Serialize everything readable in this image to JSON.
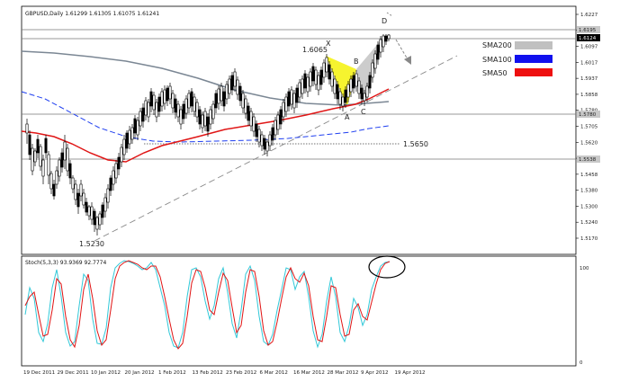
{
  "header": {
    "main_title": "GBPUSD,Daily  1.61299 1.61305 1.61075 1.61241",
    "stoch_title": "Stoch(5,3,3) 93.9369 92.7774"
  },
  "legend": [
    {
      "label": "SMA200",
      "color": "#c0c0c0"
    },
    {
      "label": "SMA100",
      "color": "#1010ee"
    },
    {
      "label": "SMA50",
      "color": "#ee1010"
    }
  ],
  "price_axis": [
    "1.6227",
    "1.6124",
    "1.6097",
    "1.6017",
    "1.5937",
    "1.5858",
    "1.5780",
    "1.5705",
    "1.5620",
    "1.5539",
    "1.5458",
    "1.5380",
    "1.5300",
    "1.5240",
    "1.5170"
  ],
  "price_tags": {
    "current": "1.6124",
    "upper": "1.6195",
    "mid": "1.5780",
    "low": "1.5538"
  },
  "stoch_axis": {
    "top": "100",
    "bottom": "0"
  },
  "date_axis": [
    "19 Dec 2011",
    "29 Dec 2011",
    "10 Jan 2012",
    "20 Jan 2012",
    "1 Feb 2012",
    "13 Feb 2012",
    "23 Feb 2012",
    "6 Mar 2012",
    "16 Mar 2012",
    "28 Mar 2012",
    "9 Apr 2012",
    "19 Apr 2012"
  ],
  "annotations": {
    "low_price": "1.5230",
    "level_1": "1.5650",
    "level_2": "1.6065",
    "pattern_X": "X",
    "pattern_A": "A",
    "pattern_B": "B",
    "pattern_C": "C",
    "pattern_D": "D"
  },
  "colors": {
    "bull_candle": "#ffffff",
    "bear_candle": "#000000",
    "sma200": "#7b8794",
    "sma100": "#1f3ff0",
    "sma50": "#e01515",
    "stoch_main": "#32c8d8",
    "stoch_signal": "#e01515",
    "pattern_fill_1": "#f4f20a",
    "pattern_fill_2": "#c7c7c7"
  }
}
